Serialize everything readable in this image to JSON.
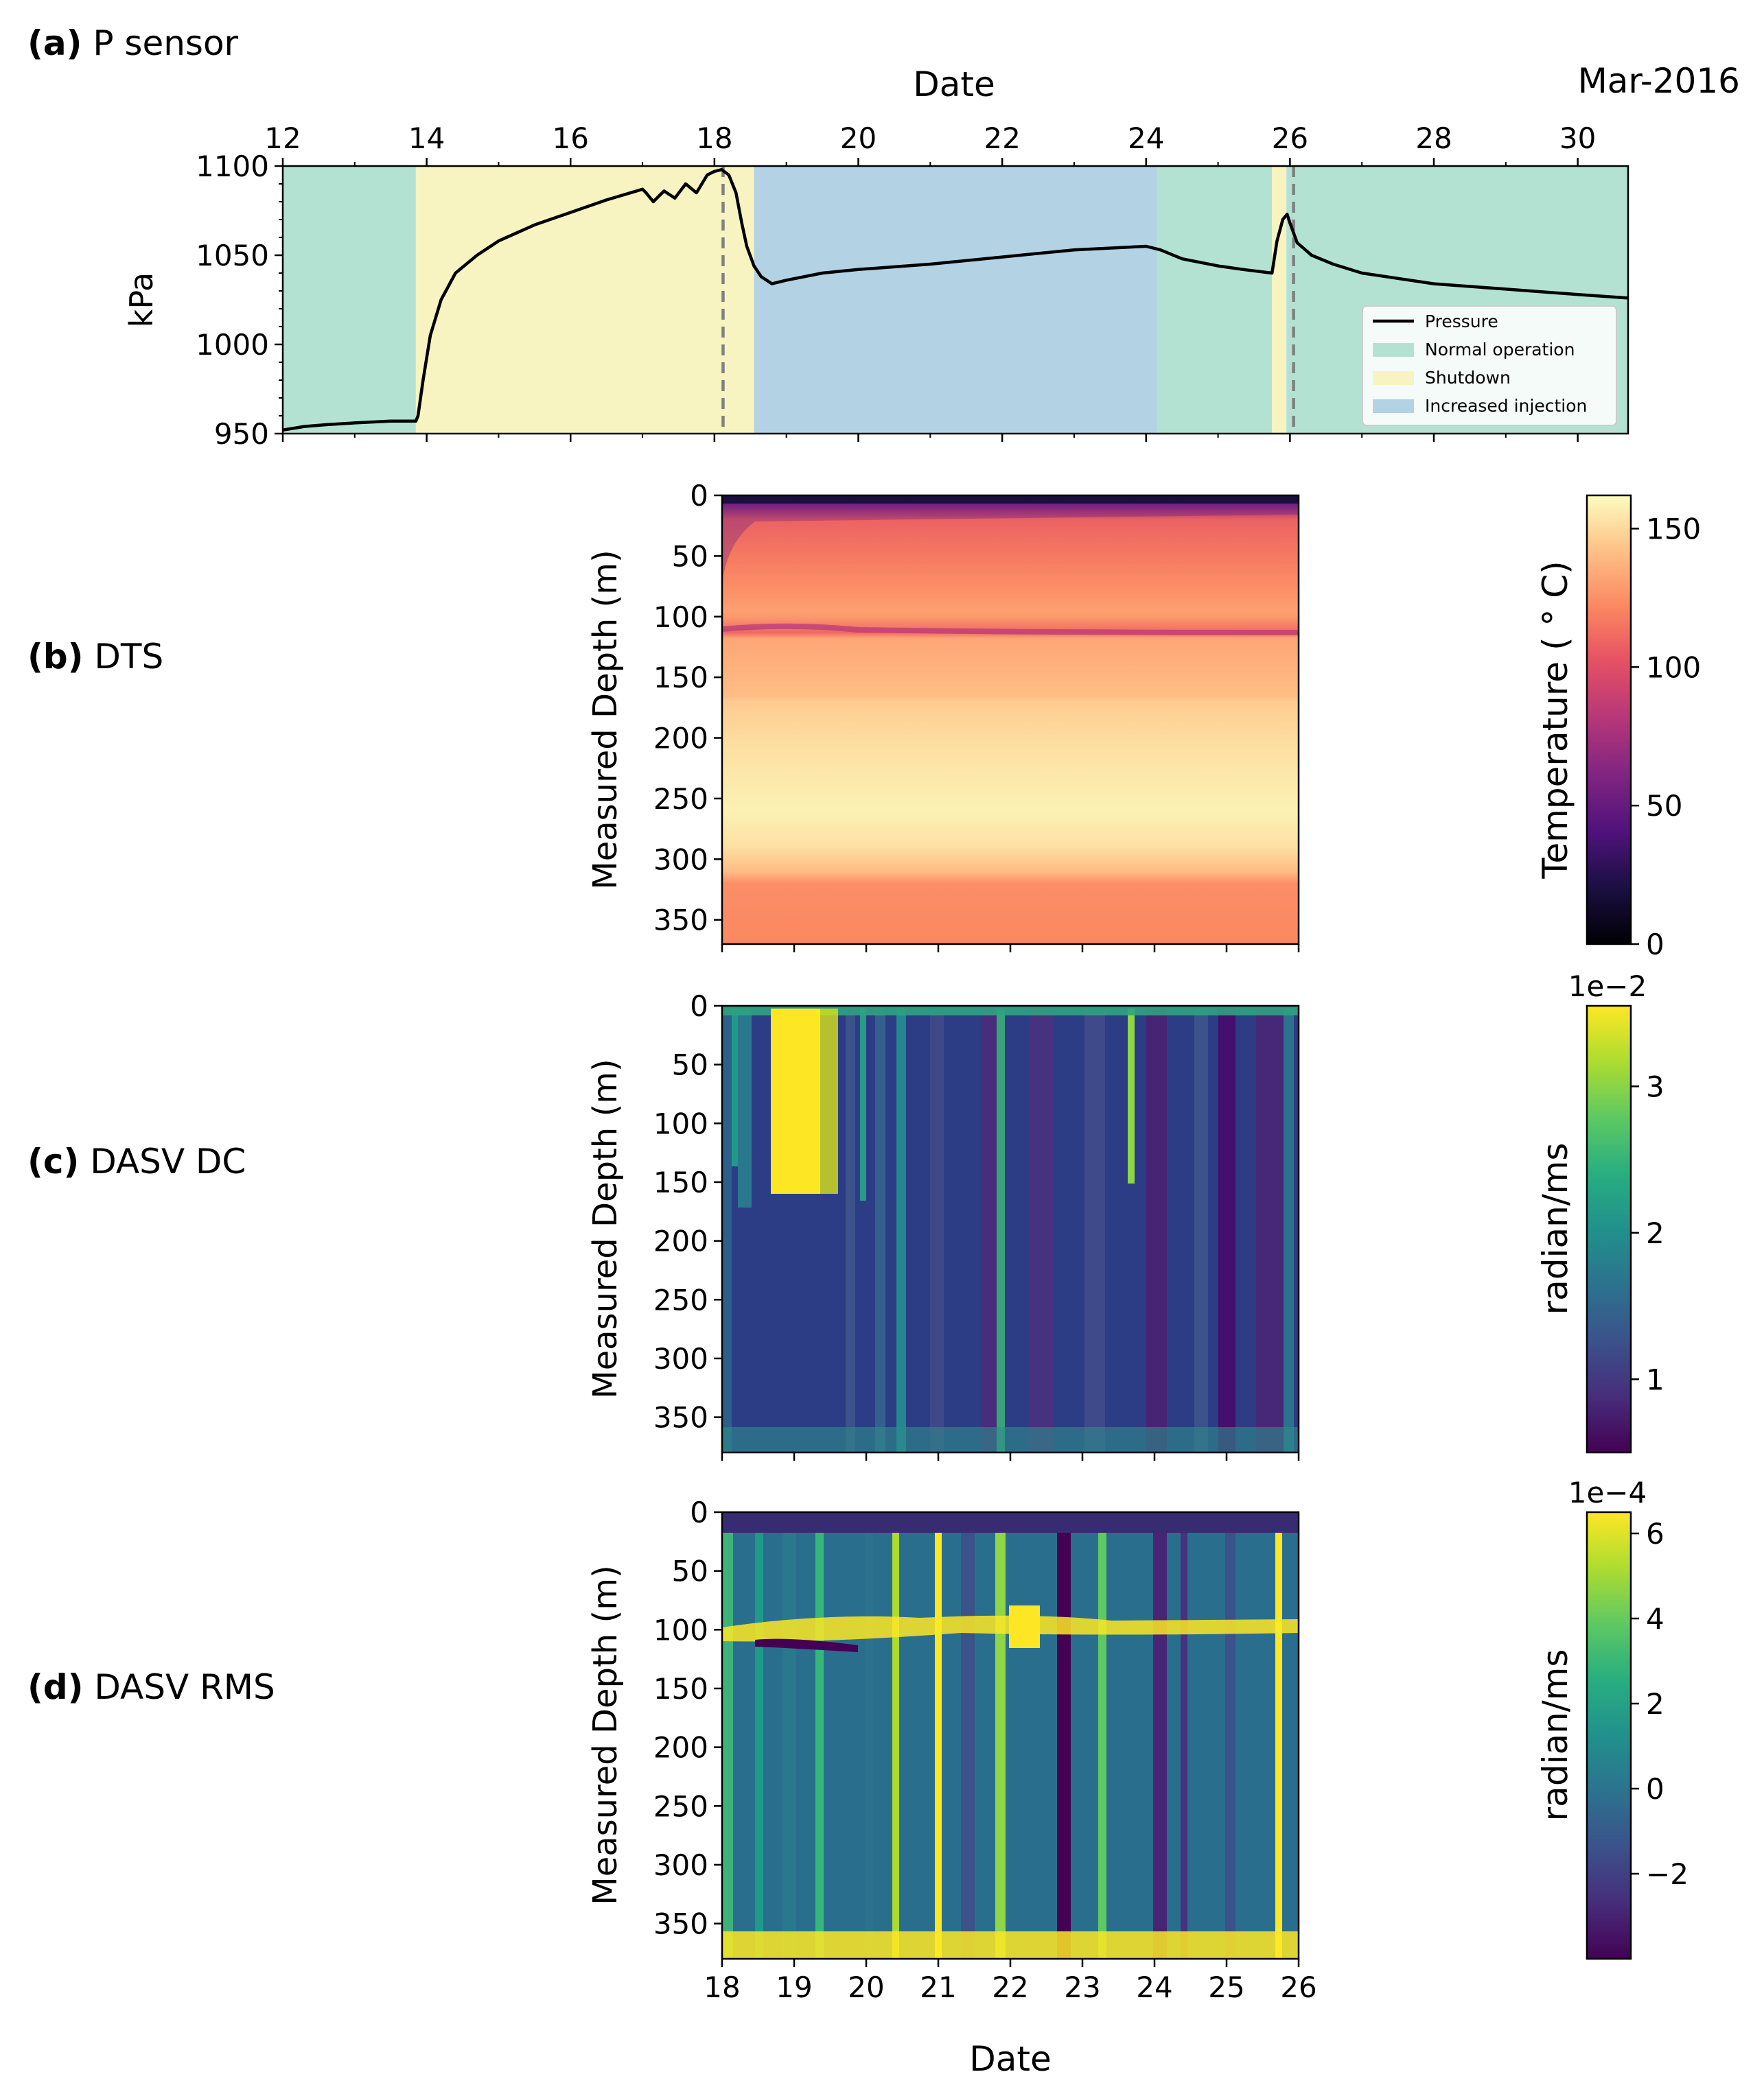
{
  "panels": {
    "a": {
      "letter": "(a)",
      "name": "P sensor"
    },
    "b": {
      "letter": "(b)",
      "name": "DTS"
    },
    "c": {
      "letter": "(c)",
      "name": "DASV DC"
    },
    "d": {
      "letter": "(d)",
      "name": "DASV RMS"
    }
  },
  "chart_data": [
    {
      "id": "a",
      "type": "line",
      "title": "",
      "xlabel": "Date",
      "top_right_label": "Mar-2016",
      "ylabel": "kPa",
      "xlim": [
        12,
        30.7
      ],
      "ylim": [
        950,
        1100
      ],
      "xticks": [
        "12",
        "14",
        "16",
        "18",
        "20",
        "22",
        "24",
        "26",
        "28",
        "30"
      ],
      "yticks": [
        "950",
        "1000",
        "1050",
        "1100"
      ],
      "legend_position": "bottom-right",
      "legend": [
        "Pressure",
        "Normal operation",
        "Shutdown",
        "Increased injection"
      ],
      "colors": {
        "normal": "#b3e2d3",
        "shutdown": "#f7f4c1",
        "injection": "#b3d3e5",
        "line": "#000000",
        "dashed": "#808080"
      },
      "regions": [
        {
          "kind": "normal",
          "x0": 12,
          "x1": 13.85
        },
        {
          "kind": "shutdown",
          "x0": 13.85,
          "x1": 18.55
        },
        {
          "kind": "injection",
          "x0": 18.55,
          "x1": 24.15
        },
        {
          "kind": "normal",
          "x0": 24.15,
          "x1": 25.75
        },
        {
          "kind": "shutdown",
          "x0": 25.75,
          "x1": 25.95
        },
        {
          "kind": "normal",
          "x0": 25.95,
          "x1": 30.7
        }
      ],
      "vlines": [
        18.12,
        26.05
      ],
      "series": [
        {
          "name": "Pressure",
          "x": [
            12,
            12.3,
            12.6,
            13,
            13.5,
            13.85,
            13.88,
            13.95,
            14.05,
            14.2,
            14.4,
            14.7,
            15,
            15.5,
            16,
            16.5,
            17,
            17.05,
            17.15,
            17.3,
            17.45,
            17.6,
            17.75,
            17.9,
            18.0,
            18.1,
            18.2,
            18.3,
            18.38,
            18.45,
            18.55,
            18.65,
            18.8,
            19.0,
            19.5,
            20,
            21,
            22,
            23,
            24,
            24.2,
            24.5,
            25,
            25.35,
            25.75,
            25.82,
            25.9,
            25.96,
            26.0,
            26.1,
            26.3,
            26.6,
            27,
            28,
            29,
            30,
            30.7
          ],
          "y": [
            952,
            954,
            955,
            956,
            957,
            957,
            960,
            980,
            1005,
            1025,
            1040,
            1050,
            1058,
            1067,
            1074,
            1081,
            1087,
            1085,
            1080,
            1086,
            1082,
            1090,
            1085,
            1095,
            1097,
            1098,
            1095,
            1085,
            1068,
            1055,
            1044,
            1038,
            1034,
            1036,
            1040,
            1042,
            1045,
            1049,
            1053,
            1055,
            1053,
            1048,
            1044,
            1042,
            1040,
            1058,
            1070,
            1073,
            1068,
            1057,
            1050,
            1045,
            1040,
            1034,
            1031,
            1028,
            1026
          ]
        }
      ]
    },
    {
      "id": "b",
      "type": "heatmap",
      "ylabel": "Measured Depth (m)",
      "ylim": [
        370,
        0
      ],
      "xlim": [
        18,
        26
      ],
      "yticks": [
        "0",
        "50",
        "100",
        "150",
        "200",
        "250",
        "300",
        "350"
      ],
      "colorbar_label": "Temperature ($^\\circ$ C)",
      "colorbar_label_text": "Temperature ( ° C)",
      "colorbar_range": [
        0,
        162
      ],
      "colorbar_ticks": [
        "0",
        "50",
        "100",
        "150"
      ],
      "colormap": "magma",
      "depth_profile_c": [
        [
          0,
          55
        ],
        [
          8,
          60
        ],
        [
          20,
          108
        ],
        [
          55,
          118
        ],
        [
          80,
          125
        ],
        [
          95,
          130
        ],
        [
          100,
          128
        ],
        [
          113,
          110
        ],
        [
          118,
          132
        ],
        [
          165,
          140
        ],
        [
          170,
          145
        ],
        [
          210,
          152
        ],
        [
          260,
          158
        ],
        [
          290,
          152
        ],
        [
          310,
          140
        ],
        [
          320,
          124
        ],
        [
          370,
          122
        ]
      ]
    },
    {
      "id": "c",
      "type": "heatmap",
      "ylabel": "Measured Depth (m)",
      "ylim": [
        380,
        0
      ],
      "xlim": [
        18,
        26
      ],
      "yticks": [
        "0",
        "50",
        "100",
        "150",
        "200",
        "250",
        "300",
        "350"
      ],
      "colorbar_label": "radian/ms",
      "colorbar_exponent": "1e−2",
      "colorbar_range": [
        0.5,
        3.55
      ],
      "colorbar_ticks": [
        "1",
        "2",
        "3"
      ],
      "colormap": "viridis"
    },
    {
      "id": "d",
      "type": "heatmap",
      "ylabel": "Measured Depth (m)",
      "xlabel": "Date",
      "ylim": [
        380,
        0
      ],
      "xlim": [
        18,
        26
      ],
      "xticks": [
        "18",
        "19",
        "20",
        "21",
        "22",
        "23",
        "24",
        "25",
        "26"
      ],
      "yticks": [
        "0",
        "50",
        "100",
        "150",
        "200",
        "250",
        "300",
        "350"
      ],
      "colorbar_label": "radian/ms",
      "colorbar_exponent": "1e−4",
      "colorbar_range": [
        -4,
        6.5
      ],
      "colorbar_ticks": [
        "−2",
        "0",
        "2",
        "4",
        "6"
      ],
      "colormap": "viridis"
    }
  ]
}
